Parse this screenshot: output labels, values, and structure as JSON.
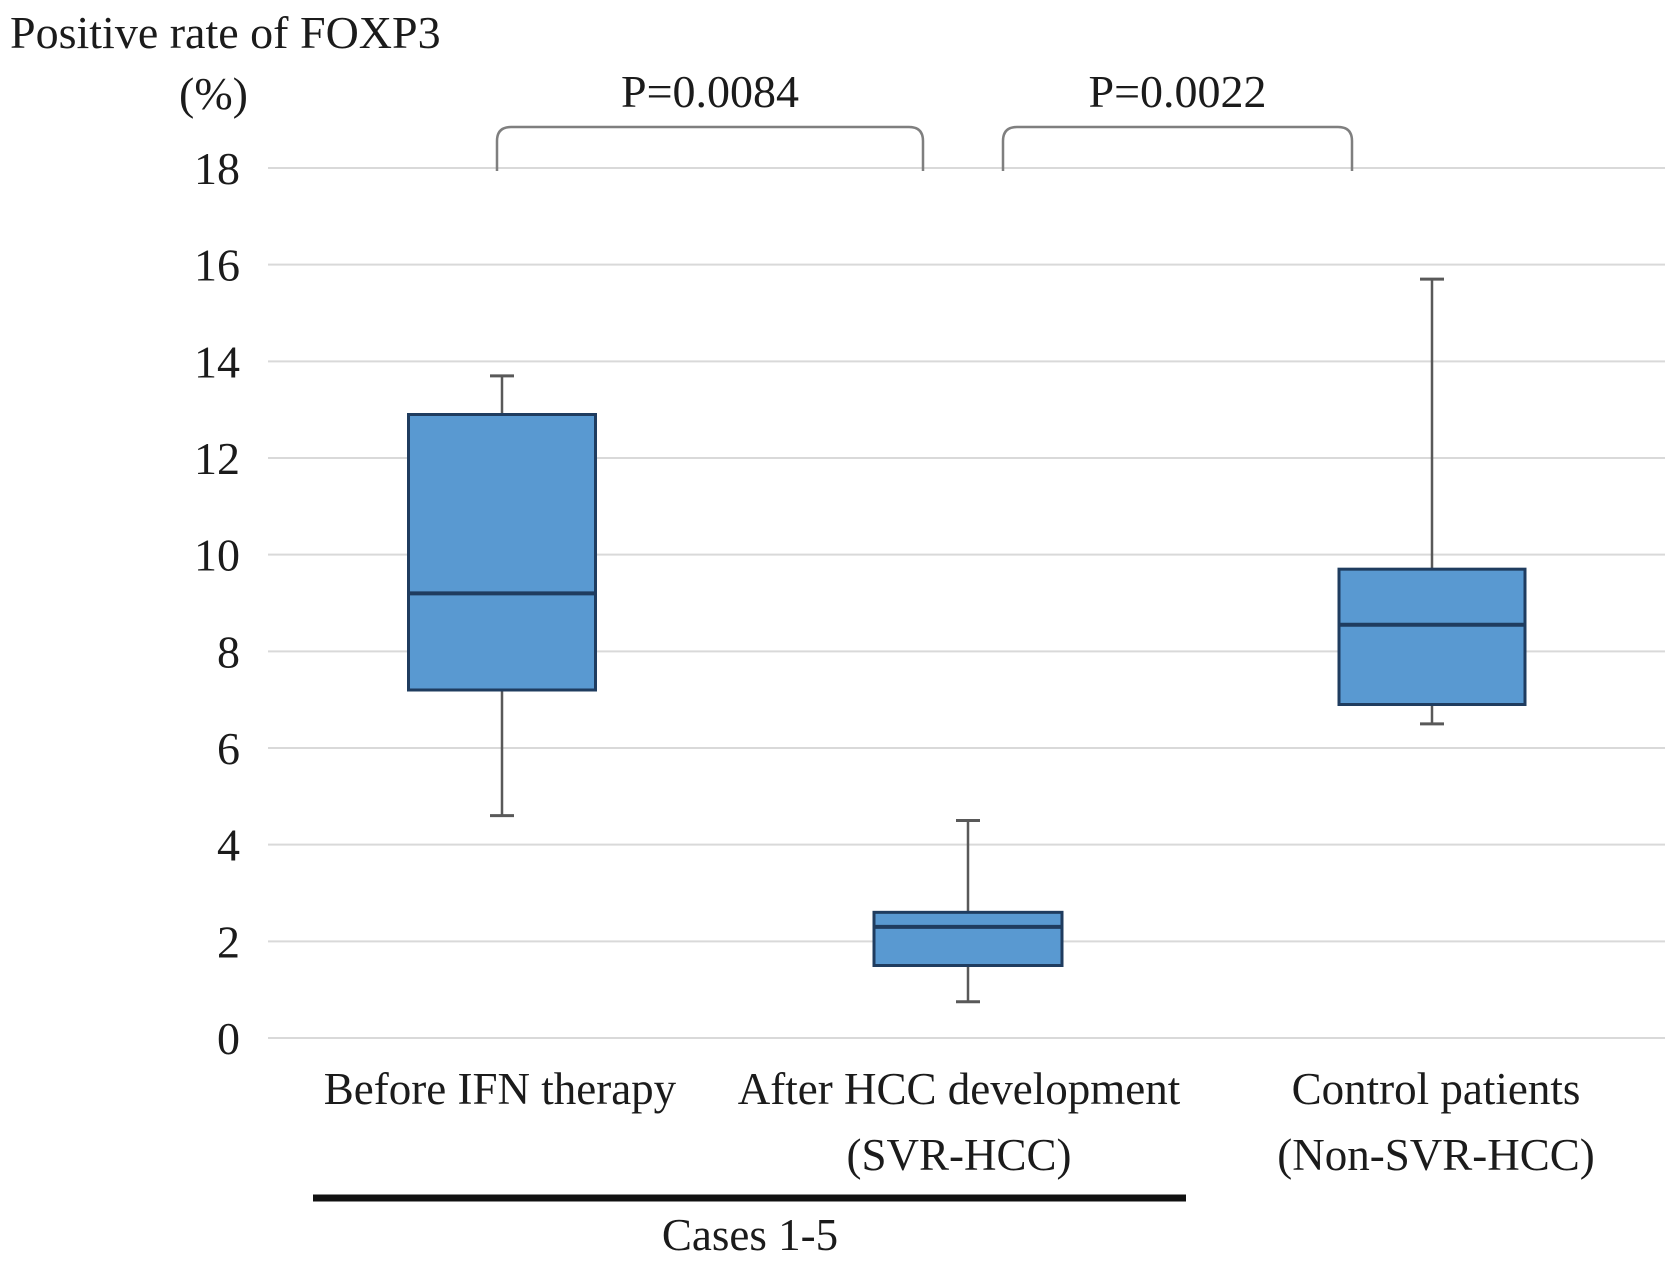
{
  "colors": {
    "box_fill": "#5999D1",
    "box_border": "#1F3C5F",
    "median": "#1F3C5F",
    "whisker": "#595959",
    "gridline": "#D9D9D9",
    "bracket": "#7F7F7F",
    "text": "#1B1B1B",
    "underline": "#111111",
    "background": "#FFFFFF"
  },
  "chart_data": {
    "type": "boxplot",
    "title": "Positive rate of FOXP3",
    "unit_label": "(%)",
    "ylabel": "Positive rate of FOXP3 (%)",
    "ylim": [
      0,
      18
    ],
    "yticks": [
      18,
      16,
      14,
      12,
      10,
      8,
      6,
      4,
      2,
      0
    ],
    "grid": true,
    "legend": "none",
    "categories": [
      {
        "lines": [
          "Before IFN therapy"
        ]
      },
      {
        "lines": [
          "After HCC development",
          "(SVR-HCC)"
        ]
      },
      {
        "lines": [
          "Control patients",
          "(Non-SVR-HCC)"
        ]
      }
    ],
    "series": [
      {
        "name": "Before IFN therapy",
        "whisker_low": 4.6,
        "q1": 7.2,
        "median": 9.2,
        "q3": 12.9,
        "whisker_high": 13.7
      },
      {
        "name": "After HCC development (SVR-HCC)",
        "whisker_low": 0.75,
        "q1": 1.5,
        "median": 2.3,
        "q3": 2.6,
        "whisker_high": 4.5
      },
      {
        "name": "Control patients (Non-SVR-HCC)",
        "whisker_low": 6.5,
        "q1": 6.9,
        "median": 8.55,
        "q3": 9.7,
        "whisker_high": 15.7
      }
    ],
    "comparisons": [
      {
        "label": "P=0.0084",
        "groups": [
          "Before IFN therapy",
          "After HCC development (SVR-HCC)"
        ]
      },
      {
        "label": "P=0.0022",
        "groups": [
          "After HCC development (SVR-HCC)",
          "Control patients (Non-SVR-HCC)"
        ]
      }
    ],
    "group_annotation": {
      "label": "Cases 1-5",
      "covers": [
        "Before IFN therapy",
        "After HCC development (SVR-HCC)"
      ]
    }
  }
}
